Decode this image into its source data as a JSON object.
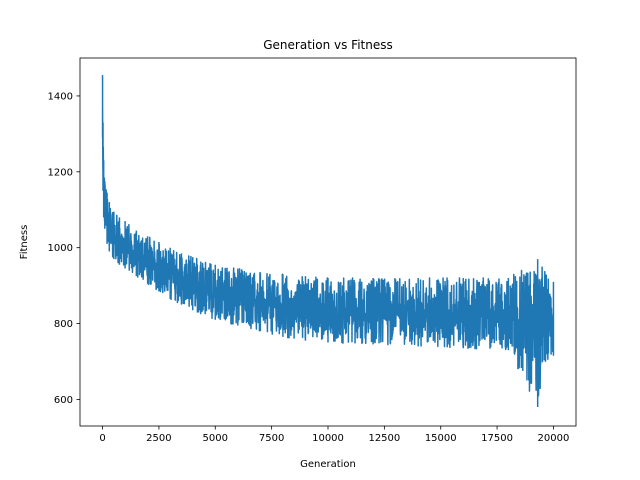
{
  "chart_data": {
    "type": "line",
    "title": "Generation vs Fitness",
    "xlabel": "Generation",
    "ylabel": "Fitness",
    "xlim": [
      -1000,
      21000
    ],
    "ylim": [
      530,
      1500
    ],
    "xticks": [
      0,
      2500,
      5000,
      7500,
      10000,
      12500,
      15000,
      17500,
      20000
    ],
    "yticks": [
      600,
      800,
      1000,
      1200,
      1400
    ],
    "grid": false,
    "series_color": "#1f77b4",
    "series": [
      {
        "x": [
          0,
          20,
          50,
          100,
          200,
          300,
          500,
          750,
          1000,
          1500,
          2000,
          2500,
          3000,
          3500,
          4000,
          5000,
          6000,
          7000,
          8000,
          9000,
          10000,
          12000,
          14000,
          16000,
          18000,
          19300,
          20000
        ],
        "upper": [
          1455,
          1330,
          1230,
          1175,
          1145,
          1120,
          1095,
          1080,
          1070,
          1045,
          1030,
          1015,
          1000,
          985,
          975,
          955,
          945,
          935,
          930,
          925,
          920,
          920,
          920,
          920,
          920,
          970,
          910
        ],
        "lower": [
          1290,
          1150,
          1080,
          1050,
          1010,
          990,
          970,
          955,
          945,
          925,
          905,
          885,
          865,
          850,
          835,
          810,
          795,
          780,
          765,
          755,
          750,
          745,
          740,
          735,
          730,
          580,
          715
        ],
        "mean": [
          1400,
          1250,
          1150,
          1110,
          1080,
          1055,
          1030,
          1015,
          1005,
          985,
          965,
          945,
          930,
          915,
          900,
          880,
          865,
          855,
          845,
          835,
          830,
          825,
          820,
          820,
          815,
          800,
          805
        ]
      }
    ]
  }
}
